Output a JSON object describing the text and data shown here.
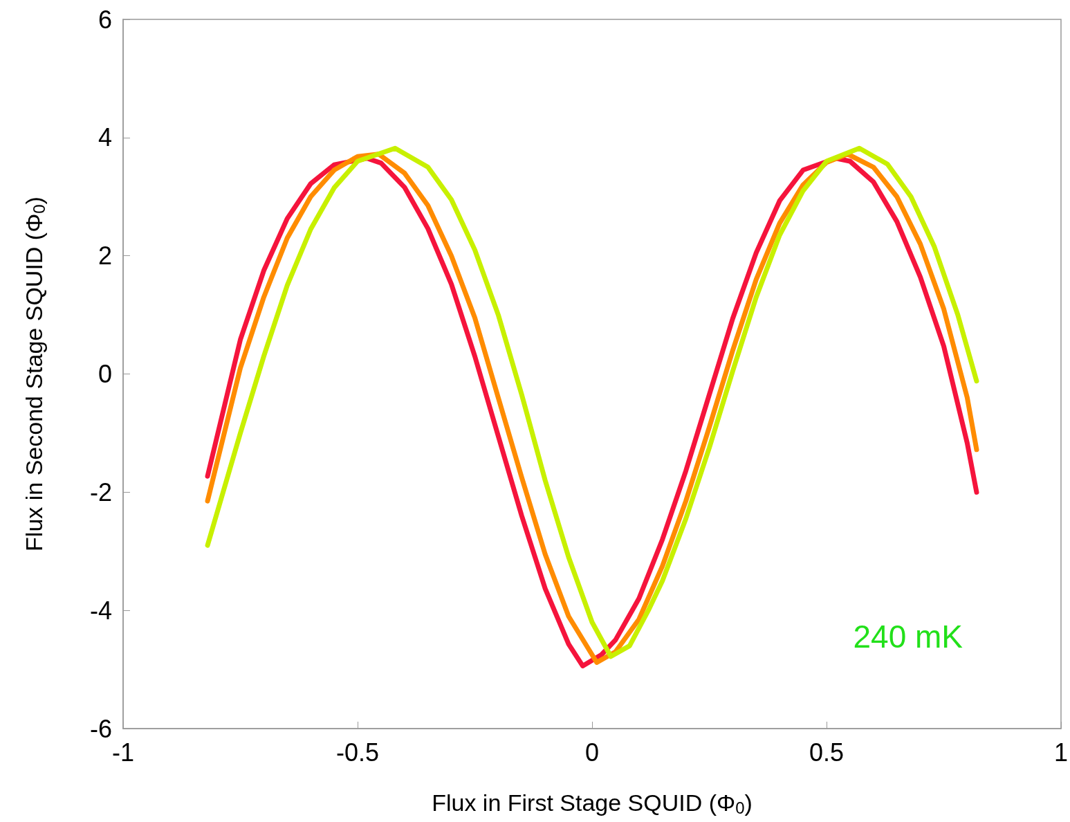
{
  "chart_data": {
    "type": "line",
    "xlabel": "Flux in First Stage SQUID (Φ$_{0}$)",
    "ylabel": "Flux in Second Stage SQUID (Φ$_{0}$)",
    "annotations": [
      "240 mK"
    ],
    "xlim": [
      -1,
      1
    ],
    "xticks": [
      -1,
      -0.5,
      0,
      0.5,
      1
    ],
    "ylim": [
      -6,
      6
    ],
    "yticks": [
      -6,
      -4,
      -2,
      0,
      2,
      4,
      6
    ],
    "grid": false,
    "marker": "none",
    "line_style": "solid",
    "series": [
      {
        "color": "#f5143c",
        "x": [
          -0.82,
          -0.75,
          -0.7,
          -0.65,
          -0.6,
          -0.55,
          -0.48,
          -0.45,
          -0.4,
          -0.35,
          -0.3,
          -0.25,
          -0.2,
          -0.15,
          -0.1,
          -0.05,
          -0.02,
          0.02,
          0.05,
          0.1,
          0.15,
          0.2,
          0.25,
          0.3,
          0.35,
          0.4,
          0.45,
          0.52,
          0.55,
          0.6,
          0.65,
          0.7,
          0.75,
          0.8,
          0.82
        ],
        "values": [
          -1.73,
          0.58,
          1.75,
          2.63,
          3.22,
          3.54,
          3.65,
          3.57,
          3.16,
          2.46,
          1.52,
          0.3,
          -1.05,
          -2.4,
          -3.63,
          -4.57,
          -4.94,
          -4.75,
          -4.5,
          -3.8,
          -2.8,
          -1.64,
          -0.35,
          0.94,
          2.05,
          2.93,
          3.45,
          3.65,
          3.6,
          3.25,
          2.58,
          1.64,
          0.47,
          -1.17,
          -2.0
        ]
      },
      {
        "color": "#ff8c00",
        "x": [
          -0.82,
          -0.75,
          -0.7,
          -0.65,
          -0.6,
          -0.55,
          -0.5,
          -0.455,
          -0.4,
          -0.35,
          -0.3,
          -0.25,
          -0.2,
          -0.15,
          -0.1,
          -0.05,
          0,
          0.01,
          0.05,
          0.1,
          0.15,
          0.2,
          0.25,
          0.3,
          0.35,
          0.4,
          0.45,
          0.5,
          0.545,
          0.6,
          0.65,
          0.7,
          0.75,
          0.8,
          0.82
        ],
        "values": [
          -2.15,
          0.1,
          1.3,
          2.3,
          3.0,
          3.45,
          3.68,
          3.72,
          3.4,
          2.85,
          2.0,
          0.95,
          -0.4,
          -1.75,
          -3.05,
          -4.1,
          -4.75,
          -4.88,
          -4.7,
          -4.15,
          -3.25,
          -2.15,
          -0.9,
          0.4,
          1.6,
          2.55,
          3.2,
          3.58,
          3.72,
          3.5,
          3.0,
          2.2,
          1.1,
          -0.4,
          -1.28
        ]
      },
      {
        "color": "#c8f000",
        "x": [
          -0.82,
          -0.75,
          -0.7,
          -0.65,
          -0.6,
          -0.55,
          -0.5,
          -0.42,
          -0.35,
          -0.3,
          -0.25,
          -0.2,
          -0.15,
          -0.1,
          -0.05,
          0,
          0.04,
          0.08,
          0.12,
          0.15,
          0.2,
          0.25,
          0.3,
          0.35,
          0.4,
          0.45,
          0.5,
          0.57,
          0.63,
          0.68,
          0.73,
          0.78,
          0.82
        ],
        "values": [
          -2.9,
          -1.0,
          0.3,
          1.5,
          2.45,
          3.15,
          3.6,
          3.82,
          3.5,
          2.95,
          2.1,
          1.0,
          -0.35,
          -1.8,
          -3.1,
          -4.2,
          -4.78,
          -4.6,
          -4.0,
          -3.5,
          -2.45,
          -1.25,
          0.05,
          1.3,
          2.35,
          3.1,
          3.6,
          3.82,
          3.55,
          3.0,
          2.15,
          1.0,
          -0.12
        ]
      }
    ]
  }
}
